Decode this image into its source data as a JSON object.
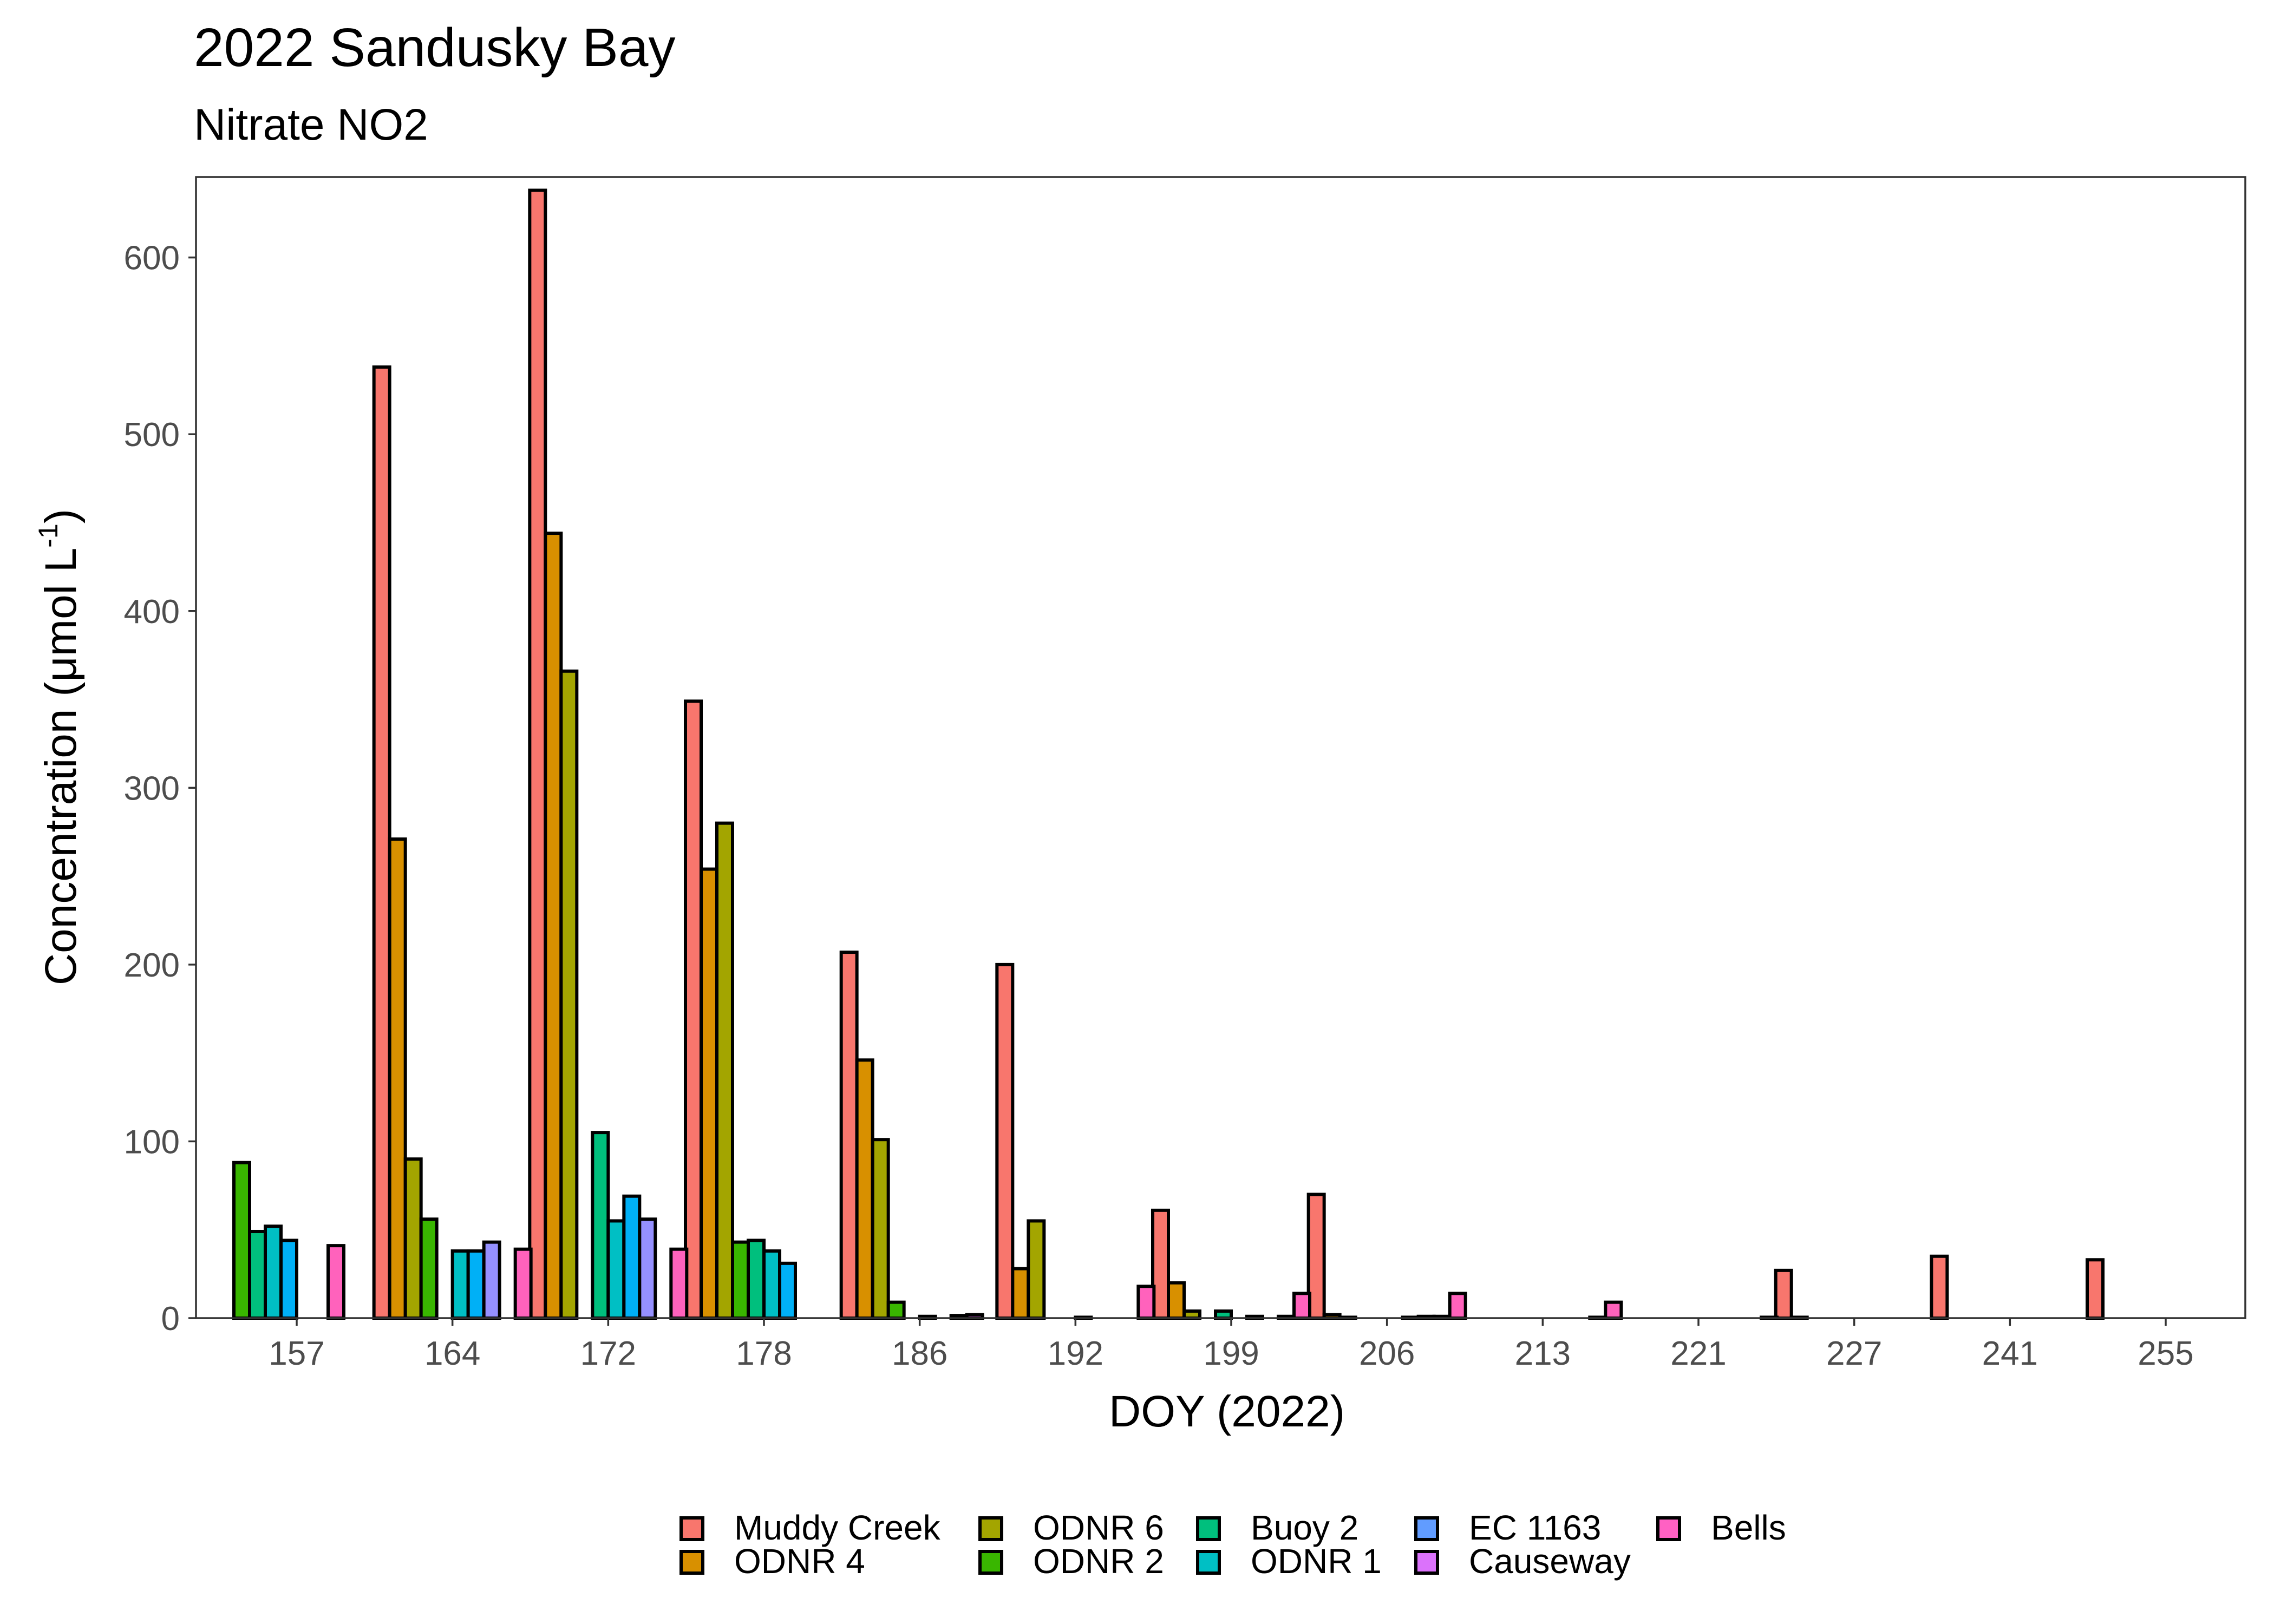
{
  "chart_data": {
    "type": "bar",
    "title": "2022 Sandusky Bay",
    "subtitle": "Nitrate NO2",
    "xlabel": "DOY (2022)",
    "ylabel": "Concentration (μmol L",
    "ylabel_superscript": "-1",
    "ylabel_suffix": ")",
    "ylim": [
      0,
      640
    ],
    "yticks": [
      0,
      100,
      200,
      300,
      400,
      500,
      600
    ],
    "categories": [
      "157",
      "164",
      "172",
      "178",
      "186",
      "192",
      "199",
      "206",
      "213",
      "221",
      "227",
      "241",
      "255"
    ],
    "legend_position": "bottom",
    "grid": false,
    "series": [
      {
        "name": "Muddy Creek",
        "color": "#F8766D",
        "values": [
          null,
          538,
          638,
          349,
          207,
          200,
          61,
          70,
          null,
          null,
          27,
          35,
          33
        ]
      },
      {
        "name": "ODNR 4",
        "color": "#D89000",
        "values": [
          null,
          271,
          444,
          254,
          146,
          28,
          20,
          2,
          null,
          null,
          0.5,
          null,
          null
        ]
      },
      {
        "name": "ODNR 6",
        "color": "#A3A500",
        "values": [
          null,
          90,
          366,
          280,
          101,
          55,
          4,
          0.5,
          null,
          null,
          null,
          null,
          null
        ]
      },
      {
        "name": "ODNR 2",
        "color": "#39B600",
        "values": [
          88,
          56,
          null,
          43,
          9,
          null,
          null,
          null,
          null,
          null,
          null,
          null,
          null
        ]
      },
      {
        "name": "Buoy 2",
        "color": "#00BF7D",
        "values": [
          49,
          null,
          105,
          44,
          null,
          null,
          4,
          null,
          null,
          null,
          null,
          null,
          null
        ]
      },
      {
        "name": "ODNR 1",
        "color": "#00BFC4",
        "values": [
          52,
          38,
          55,
          38,
          1,
          0.5,
          null,
          null,
          null,
          null,
          null,
          null,
          null
        ]
      },
      {
        "name": "EC 1163",
        "color": "#00B0F6",
        "values": [
          44,
          38,
          69,
          31,
          null,
          null,
          1,
          0.5,
          null,
          null,
          null,
          null,
          null
        ]
      },
      {
        "name": "Causeway",
        "color": "#9590FF",
        "values": [
          null,
          43,
          56,
          null,
          1.5,
          null,
          null,
          1,
          null,
          null,
          null,
          null,
          null
        ]
      },
      {
        "name": "Causeway",
        "color": "#E76BF3",
        "values": [
          null,
          null,
          null,
          null,
          2,
          null,
          1,
          1,
          0.5,
          null,
          null,
          null,
          null
        ]
      },
      {
        "name": "Bells",
        "color": "#FF62BC",
        "values": [
          41,
          39,
          39,
          null,
          null,
          18,
          14,
          14,
          9,
          0.5,
          null,
          null,
          null
        ]
      }
    ],
    "legend": [
      {
        "name": "Muddy Creek",
        "color": "#F8766D"
      },
      {
        "name": "ODNR 4",
        "color": "#D89000"
      },
      {
        "name": "ODNR 6",
        "color": "#A3A500"
      },
      {
        "name": "ODNR 2",
        "color": "#39B600"
      },
      {
        "name": "Buoy 2",
        "color": "#00BF7D"
      },
      {
        "name": "ODNR 1",
        "color": "#00BFC4"
      },
      {
        "name": "EC 1163",
        "color": "#619CFF"
      },
      {
        "name": "Causeway",
        "color": "#DB72FB"
      },
      {
        "name": "Bells",
        "color": "#FF61C3"
      }
    ]
  }
}
